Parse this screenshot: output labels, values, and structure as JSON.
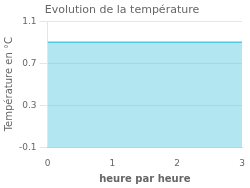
{
  "chart_data": {
    "type": "area",
    "title": "Evolution de la température",
    "xlabel": "heure par heure",
    "ylabel": "Température en °C",
    "x": [
      0,
      3
    ],
    "values": [
      0.9,
      0.9
    ],
    "color": "#55c8e0",
    "xlim": [
      0,
      3
    ],
    "ylim": [
      -0.1,
      1.1
    ],
    "xticks": [
      0,
      1,
      2,
      3
    ],
    "yticks": [
      -0.1,
      0.3,
      0.7,
      1.1
    ],
    "grid": "y"
  }
}
